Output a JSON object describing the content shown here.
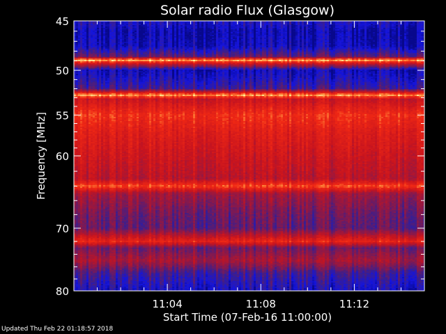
{
  "chart_data": {
    "type": "heatmap",
    "title": "Solar radio Flux (Glasgow)",
    "xlabel": "Start Time (07-Feb-16 11:00:00)",
    "ylabel": "Frequency [MHz]",
    "x_unit": "minutes after 11:00",
    "xlim": [
      0,
      15
    ],
    "ylim": [
      45,
      80
    ],
    "y_log_scale": true,
    "y_inverted": true,
    "x_ticks": [
      {
        "value": 4,
        "label": "11:04"
      },
      {
        "value": 8,
        "label": "11:08"
      },
      {
        "value": 12,
        "label": "11:12"
      }
    ],
    "y_ticks": [
      {
        "value": 45,
        "label": "45"
      },
      {
        "value": 50,
        "label": "50"
      },
      {
        "value": 55,
        "label": "55"
      },
      {
        "value": 60,
        "label": "60"
      },
      {
        "value": 70,
        "label": "70"
      },
      {
        "value": 80,
        "label": "80"
      }
    ],
    "colors": {
      "background": "#000000",
      "low": "#0a0aa0",
      "mid_low": "#3a1f7a",
      "mid": "#8a1a4a",
      "high": "#e01010",
      "peak": "#ffe070"
    },
    "intensity_profile": [
      {
        "freq": 45.0,
        "level": 0.15
      },
      {
        "freq": 46.0,
        "level": 0.05
      },
      {
        "freq": 47.5,
        "level": 0.08
      },
      {
        "freq": 48.6,
        "level": 0.35
      },
      {
        "freq": 48.9,
        "level": 1.0
      },
      {
        "freq": 49.3,
        "level": 0.6
      },
      {
        "freq": 50.0,
        "level": 0.08
      },
      {
        "freq": 51.0,
        "level": 0.15
      },
      {
        "freq": 52.0,
        "level": 0.25
      },
      {
        "freq": 52.7,
        "level": 0.95
      },
      {
        "freq": 53.2,
        "level": 0.6
      },
      {
        "freq": 55.0,
        "level": 0.8
      },
      {
        "freq": 57.0,
        "level": 0.7
      },
      {
        "freq": 60.0,
        "level": 0.62
      },
      {
        "freq": 63.0,
        "level": 0.55
      },
      {
        "freq": 64.0,
        "level": 0.85
      },
      {
        "freq": 65.0,
        "level": 0.48
      },
      {
        "freq": 68.0,
        "level": 0.35
      },
      {
        "freq": 70.0,
        "level": 0.32
      },
      {
        "freq": 72.0,
        "level": 0.75
      },
      {
        "freq": 73.0,
        "level": 0.35
      },
      {
        "freq": 75.0,
        "level": 0.5
      },
      {
        "freq": 77.0,
        "level": 0.25
      },
      {
        "freq": 80.0,
        "level": 0.12
      }
    ]
  },
  "footer": {
    "updated": "Updated Thu Feb 22 01:18:57 2018"
  }
}
